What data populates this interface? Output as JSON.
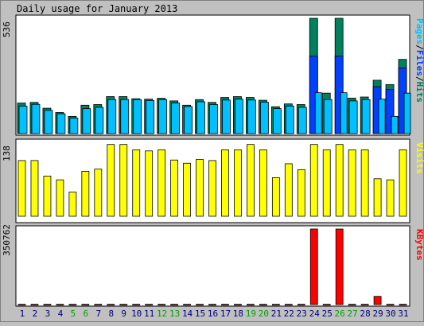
{
  "title": "Daily usage for January 2013",
  "colors": {
    "background": "#c0c0c0",
    "panel": "#ffffff",
    "hits": "#00805c",
    "files": "#0040ff",
    "pages": "#00c0ff",
    "visits": "#ffff00",
    "kbytes": "#ff0000",
    "weekday_label": "#000080",
    "weekend_label": "#00a000"
  },
  "chart_data": [
    {
      "type": "bar",
      "panel": "hits-files-pages",
      "title": "Daily usage for January 2013",
      "ymax_label": "536",
      "ylim": [
        0,
        536
      ],
      "legend": [
        "Pages",
        "/",
        "Files",
        "/",
        "Hits"
      ],
      "legend_placement": "right",
      "categories": [
        "1",
        "2",
        "3",
        "4",
        "5",
        "6",
        "7",
        "8",
        "9",
        "10",
        "11",
        "12",
        "13",
        "14",
        "15",
        "16",
        "17",
        "18",
        "19",
        "20",
        "21",
        "22",
        "23",
        "24",
        "25",
        "26",
        "27",
        "28",
        "29",
        "30",
        "31"
      ],
      "weekend_days": [
        "5",
        "6",
        "12",
        "13",
        "19",
        "20",
        "26",
        "27"
      ],
      "series": [
        {
          "name": "Hits",
          "values": [
            142,
            145,
            118,
            98,
            80,
            132,
            135,
            172,
            172,
            162,
            160,
            164,
            152,
            132,
            158,
            145,
            168,
            172,
            168,
            155,
            125,
            138,
            135,
            536,
            188,
            536,
            165,
            170,
            248,
            228,
            345
          ]
        },
        {
          "name": "Files",
          "values": [
            128,
            136,
            108,
            92,
            72,
            116,
            122,
            158,
            158,
            158,
            154,
            158,
            142,
            126,
            148,
            135,
            156,
            160,
            156,
            146,
            116,
            128,
            122,
            360,
            158,
            360,
            152,
            158,
            218,
            205,
            305
          ]
        },
        {
          "name": "Pages",
          "values": [
            128,
            136,
            108,
            92,
            72,
            116,
            122,
            158,
            158,
            158,
            154,
            158,
            142,
            126,
            148,
            135,
            156,
            160,
            156,
            146,
            116,
            128,
            122,
            190,
            158,
            190,
            152,
            158,
            160,
            80,
            188
          ]
        }
      ]
    },
    {
      "type": "bar",
      "panel": "visits",
      "ymax_label": "138",
      "ylim": [
        0,
        138
      ],
      "legend": [
        "Visits"
      ],
      "legend_placement": "right",
      "categories": [
        "1",
        "2",
        "3",
        "4",
        "5",
        "6",
        "7",
        "8",
        "9",
        "10",
        "11",
        "12",
        "13",
        "14",
        "15",
        "16",
        "17",
        "18",
        "19",
        "20",
        "21",
        "22",
        "23",
        "24",
        "25",
        "26",
        "27",
        "28",
        "29",
        "30",
        "31"
      ],
      "series": [
        {
          "name": "Visits",
          "values": [
            104,
            104,
            75,
            68,
            45,
            84,
            88,
            134,
            134,
            124,
            122,
            124,
            105,
            99,
            106,
            104,
            124,
            124,
            134,
            124,
            72,
            98,
            87,
            134,
            124,
            134,
            124,
            124,
            70,
            68,
            124
          ]
        }
      ]
    },
    {
      "type": "bar",
      "panel": "kbytes",
      "ymax_label": "350762",
      "ylim": [
        0,
        350762
      ],
      "legend": [
        "KBytes"
      ],
      "legend_placement": "right",
      "categories": [
        "1",
        "2",
        "3",
        "4",
        "5",
        "6",
        "7",
        "8",
        "9",
        "10",
        "11",
        "12",
        "13",
        "14",
        "15",
        "16",
        "17",
        "18",
        "19",
        "20",
        "21",
        "22",
        "23",
        "24",
        "25",
        "26",
        "27",
        "28",
        "29",
        "30",
        "31"
      ],
      "series": [
        {
          "name": "KBytes",
          "values": [
            900,
            900,
            900,
            900,
            900,
            900,
            900,
            900,
            900,
            900,
            900,
            900,
            900,
            900,
            900,
            900,
            900,
            900,
            900,
            900,
            900,
            900,
            900,
            350762,
            900,
            350762,
            900,
            900,
            38000,
            900,
            900
          ]
        }
      ]
    }
  ]
}
